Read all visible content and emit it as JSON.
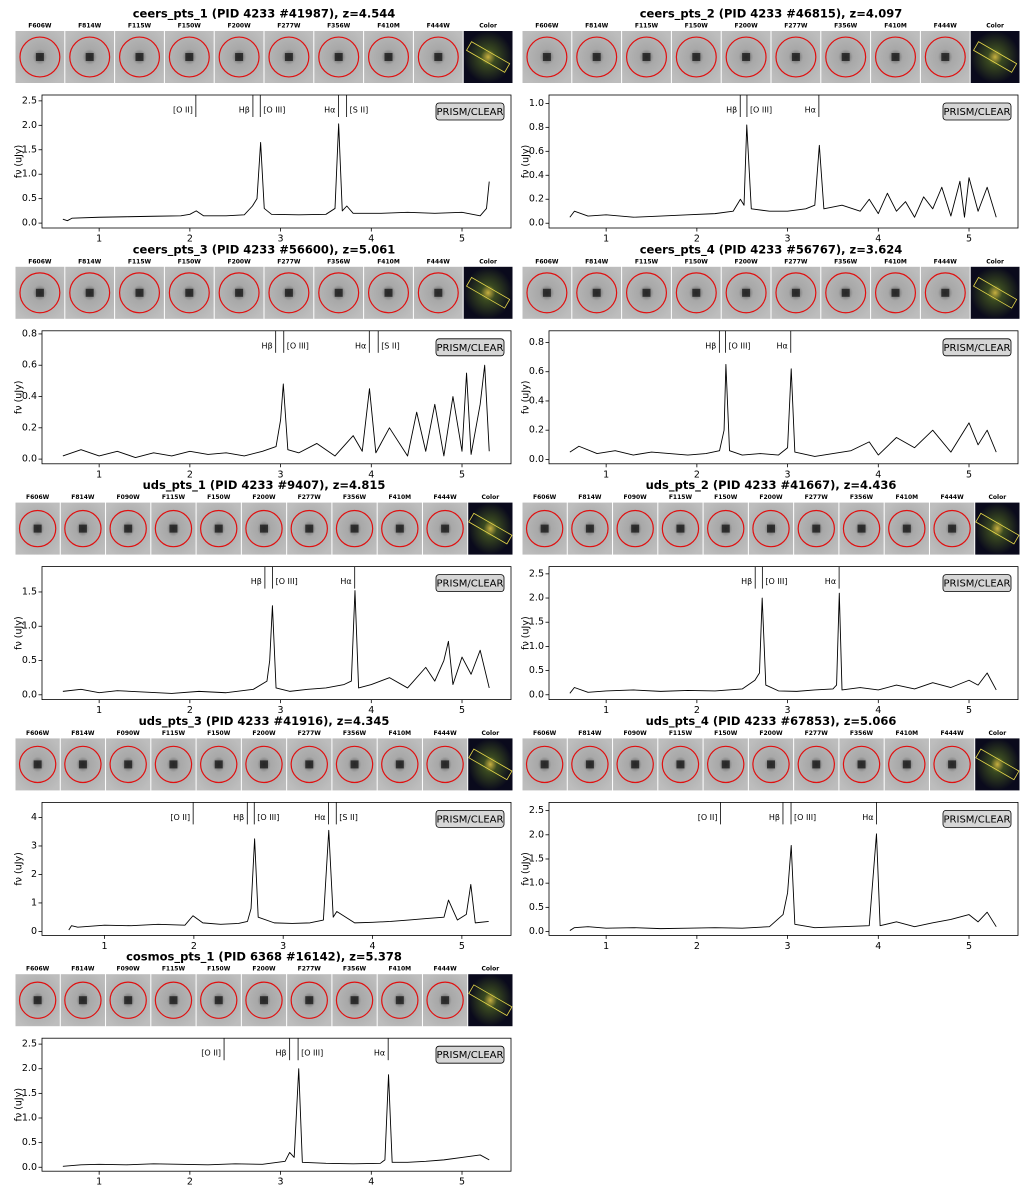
{
  "chart_data": [
    {
      "type": "line",
      "title": "ceers_pts_1 (PID 4233 #41987), z=4.544",
      "stamps": [
        "F606W",
        "F814W",
        "F115W",
        "F150W",
        "F200W",
        "F277W",
        "F356W",
        "F410M",
        "F444W",
        "Color"
      ],
      "label": "PRISM/CLEAR",
      "ylabel": "fν (uJy)",
      "color": "#000000",
      "annotations": [
        {
          "text": "[O II]",
          "x": 2.066
        },
        {
          "text": "Hβ",
          "x": 2.695
        },
        {
          "text": "[O III]",
          "x": 2.776
        },
        {
          "text": "Hα",
          "x": 3.638
        },
        {
          "text": "[S II]",
          "x": 3.728
        }
      ],
      "x": [
        0.6,
        0.65,
        0.7,
        1.0,
        1.3,
        1.6,
        1.9,
        2.0,
        2.07,
        2.15,
        2.4,
        2.6,
        2.69,
        2.74,
        2.78,
        2.82,
        2.9,
        3.2,
        3.5,
        3.6,
        3.64,
        3.68,
        3.73,
        3.8,
        4.1,
        4.4,
        4.7,
        5.0,
        5.2,
        5.27,
        5.3
      ],
      "values": [
        0.08,
        0.05,
        0.1,
        0.12,
        0.13,
        0.14,
        0.15,
        0.18,
        0.25,
        0.15,
        0.15,
        0.17,
        0.35,
        0.5,
        1.65,
        0.3,
        0.18,
        0.17,
        0.18,
        0.3,
        2.03,
        0.25,
        0.35,
        0.2,
        0.2,
        0.22,
        0.2,
        0.22,
        0.15,
        0.3,
        0.85
      ],
      "xlim": [
        0.37,
        5.54
      ],
      "xticks": [
        1,
        2,
        3,
        4,
        5
      ],
      "ylim": [
        -0.1,
        2.62
      ],
      "yticks": [
        {
          "value": 0,
          "label": "0.0"
        },
        0.5,
        {
          "value": 1,
          "label": "1.0"
        },
        1.5,
        {
          "value": 2,
          "label": "2.0"
        },
        2.5
      ]
    },
    {
      "type": "line",
      "title": "ceers_pts_2 (PID 4233 #46815), z=4.097",
      "stamps": [
        "F606W",
        "F814W",
        "F115W",
        "F150W",
        "F200W",
        "F277W",
        "F356W",
        "F410M",
        "F444W",
        "Color"
      ],
      "label": "PRISM/CLEAR",
      "ylabel": "fν (uJy)",
      "color": "#000000",
      "annotations": [
        {
          "text": "Hβ",
          "x": 2.478
        },
        {
          "text": "[O III]",
          "x": 2.552
        },
        {
          "text": "Hα",
          "x": 3.345
        }
      ],
      "x": [
        0.6,
        0.65,
        0.8,
        1.0,
        1.3,
        1.6,
        1.9,
        2.2,
        2.4,
        2.48,
        2.52,
        2.55,
        2.6,
        2.8,
        3.0,
        3.2,
        3.3,
        3.35,
        3.4,
        3.6,
        3.8,
        3.9,
        4.0,
        4.1,
        4.2,
        4.3,
        4.4,
        4.5,
        4.6,
        4.7,
        4.8,
        4.9,
        4.95,
        5.0,
        5.1,
        5.2,
        5.3
      ],
      "values": [
        0.05,
        0.1,
        0.06,
        0.07,
        0.05,
        0.06,
        0.07,
        0.08,
        0.1,
        0.2,
        0.15,
        0.82,
        0.12,
        0.1,
        0.1,
        0.12,
        0.15,
        0.65,
        0.12,
        0.15,
        0.1,
        0.2,
        0.08,
        0.25,
        0.1,
        0.18,
        0.05,
        0.22,
        0.12,
        0.3,
        0.06,
        0.35,
        0.05,
        0.38,
        0.1,
        0.3,
        0.05
      ],
      "xlim": [
        0.37,
        5.54
      ],
      "xticks": [
        1,
        2,
        3,
        4,
        5
      ],
      "ylim": [
        -0.04,
        1.07
      ],
      "yticks": [
        {
          "value": 0,
          "label": "0.0"
        },
        0.2,
        0.4,
        0.6,
        0.8,
        {
          "value": 1,
          "label": "1.0"
        }
      ]
    },
    {
      "type": "line",
      "title": "ceers_pts_3 (PID 4233 #56600), z=5.061",
      "stamps": [
        "F606W",
        "F814W",
        "F115W",
        "F150W",
        "F200W",
        "F277W",
        "F356W",
        "F410M",
        "F444W",
        "Color"
      ],
      "label": "PRISM/CLEAR",
      "ylabel": "fν (uJy)",
      "color": "#000000",
      "annotations": [
        {
          "text": "Hβ",
          "x": 2.946
        },
        {
          "text": "[O III]",
          "x": 3.035
        },
        {
          "text": "Hα",
          "x": 3.978
        },
        {
          "text": "[S II]",
          "x": 4.076
        }
      ],
      "x": [
        0.6,
        0.8,
        1.0,
        1.2,
        1.4,
        1.6,
        1.8,
        2.0,
        2.2,
        2.4,
        2.6,
        2.8,
        2.95,
        3.0,
        3.03,
        3.08,
        3.2,
        3.4,
        3.6,
        3.8,
        3.9,
        3.98,
        4.05,
        4.2,
        4.4,
        4.5,
        4.6,
        4.7,
        4.8,
        4.9,
        5.0,
        5.05,
        5.1,
        5.2,
        5.25,
        5.3
      ],
      "values": [
        0.02,
        0.06,
        0.02,
        0.05,
        0.01,
        0.04,
        0.02,
        0.05,
        0.03,
        0.04,
        0.02,
        0.05,
        0.08,
        0.25,
        0.48,
        0.06,
        0.04,
        0.1,
        0.02,
        0.15,
        0.05,
        0.45,
        0.04,
        0.2,
        0.02,
        0.3,
        0.05,
        0.35,
        0.02,
        0.4,
        0.05,
        0.55,
        0.03,
        0.35,
        0.6,
        0.05
      ],
      "xlim": [
        0.37,
        5.54
      ],
      "xticks": [
        1,
        2,
        3,
        4,
        5
      ],
      "ylim": [
        -0.03,
        0.82
      ],
      "yticks": [
        {
          "value": 0,
          "label": "0.0"
        },
        0.2,
        0.4,
        0.6,
        0.8
      ]
    },
    {
      "type": "line",
      "title": "ceers_pts_4 (PID 4233 #56767), z=3.624",
      "stamps": [
        "F606W",
        "F814W",
        "F115W",
        "F150W",
        "F200W",
        "F277W",
        "F356W",
        "F410M",
        "F444W",
        "Color"
      ],
      "label": "PRISM/CLEAR",
      "ylabel": "fν (uJy)",
      "color": "#000000",
      "annotations": [
        {
          "text": "Hβ",
          "x": 2.248
        },
        {
          "text": "[O III]",
          "x": 2.315
        },
        {
          "text": "Hα",
          "x": 3.035
        }
      ],
      "x": [
        0.6,
        0.7,
        0.9,
        1.1,
        1.3,
        1.5,
        1.7,
        1.9,
        2.1,
        2.25,
        2.3,
        2.32,
        2.36,
        2.5,
        2.7,
        2.9,
        3.0,
        3.04,
        3.08,
        3.3,
        3.5,
        3.7,
        3.9,
        4.0,
        4.2,
        4.4,
        4.6,
        4.8,
        5.0,
        5.1,
        5.2,
        5.3
      ],
      "values": [
        0.05,
        0.09,
        0.04,
        0.06,
        0.03,
        0.05,
        0.04,
        0.03,
        0.04,
        0.06,
        0.2,
        0.65,
        0.06,
        0.03,
        0.04,
        0.03,
        0.08,
        0.62,
        0.05,
        0.02,
        0.04,
        0.06,
        0.12,
        0.03,
        0.15,
        0.08,
        0.2,
        0.05,
        0.25,
        0.1,
        0.2,
        0.05
      ],
      "xlim": [
        0.37,
        5.54
      ],
      "xticks": [
        1,
        2,
        3,
        4,
        5
      ],
      "ylim": [
        -0.03,
        0.88
      ],
      "yticks": [
        {
          "value": 0,
          "label": "0.0"
        },
        0.2,
        0.4,
        0.6,
        0.8
      ]
    },
    {
      "type": "line",
      "title": "uds_pts_1 (PID 4233 #9407), z=4.815",
      "stamps": [
        "F606W",
        "F814W",
        "F090W",
        "F115W",
        "F150W",
        "F200W",
        "F277W",
        "F356W",
        "F410M",
        "F444W",
        "Color"
      ],
      "label": "PRISM/CLEAR",
      "ylabel": "fν (uJy)",
      "color": "#000000",
      "annotations": [
        {
          "text": "Hβ",
          "x": 2.827
        },
        {
          "text": "[O III]",
          "x": 2.912
        },
        {
          "text": "Hα",
          "x": 3.817
        }
      ],
      "x": [
        0.6,
        0.8,
        1.0,
        1.2,
        1.5,
        1.8,
        2.1,
        2.4,
        2.7,
        2.85,
        2.88,
        2.91,
        2.95,
        3.1,
        3.3,
        3.5,
        3.7,
        3.78,
        3.82,
        3.86,
        4.0,
        4.2,
        4.4,
        4.6,
        4.7,
        4.8,
        4.85,
        4.9,
        5.0,
        5.1,
        5.2,
        5.3
      ],
      "values": [
        0.05,
        0.08,
        0.03,
        0.06,
        0.04,
        0.02,
        0.05,
        0.03,
        0.08,
        0.2,
        0.5,
        1.3,
        0.1,
        0.05,
        0.08,
        0.1,
        0.15,
        0.2,
        1.52,
        0.1,
        0.15,
        0.25,
        0.1,
        0.4,
        0.2,
        0.5,
        0.78,
        0.15,
        0.55,
        0.3,
        0.65,
        0.1
      ],
      "xlim": [
        0.37,
        5.54
      ],
      "xticks": [
        1,
        2,
        3,
        4,
        5
      ],
      "ylim": [
        -0.07,
        1.87
      ],
      "yticks": [
        {
          "value": 0,
          "label": "0.0"
        },
        0.5,
        {
          "value": 1,
          "label": "1.0"
        },
        1.5
      ]
    },
    {
      "type": "line",
      "title": "uds_pts_2 (PID 4233 #41667), z=4.436",
      "stamps": [
        "F606W",
        "F814W",
        "F090W",
        "F115W",
        "F150W",
        "F200W",
        "F277W",
        "F356W",
        "F410M",
        "F444W",
        "Color"
      ],
      "label": "PRISM/CLEAR",
      "ylabel": "fν (uJy)",
      "color": "#000000",
      "annotations": [
        {
          "text": "Hβ",
          "x": 2.643
        },
        {
          "text": "[O III]",
          "x": 2.722
        },
        {
          "text": "Hα",
          "x": 3.568
        }
      ],
      "x": [
        0.6,
        0.65,
        0.8,
        1.0,
        1.3,
        1.6,
        1.9,
        2.2,
        2.5,
        2.64,
        2.69,
        2.72,
        2.76,
        2.9,
        3.1,
        3.3,
        3.5,
        3.54,
        3.57,
        3.6,
        3.8,
        4.0,
        4.2,
        4.4,
        4.6,
        4.8,
        5.0,
        5.1,
        5.2,
        5.3
      ],
      "values": [
        0.03,
        0.15,
        0.05,
        0.08,
        0.1,
        0.07,
        0.09,
        0.08,
        0.12,
        0.3,
        0.45,
        2.0,
        0.2,
        0.08,
        0.07,
        0.1,
        0.12,
        0.2,
        2.1,
        0.1,
        0.15,
        0.1,
        0.2,
        0.12,
        0.25,
        0.15,
        0.3,
        0.2,
        0.45,
        0.1
      ],
      "xlim": [
        0.37,
        5.54
      ],
      "xticks": [
        1,
        2,
        3,
        4,
        5
      ],
      "ylim": [
        -0.1,
        2.65
      ],
      "yticks": [
        {
          "value": 0,
          "label": "0.0"
        },
        0.5,
        {
          "value": 1,
          "label": "1.0"
        },
        1.5,
        {
          "value": 2,
          "label": "2.0"
        },
        2.5
      ]
    },
    {
      "type": "line",
      "title": "uds_pts_3 (PID 4233 #41916), z=4.345",
      "stamps": [
        "F606W",
        "F814W",
        "F090W",
        "F115W",
        "F150W",
        "F200W",
        "F277W",
        "F356W",
        "F410M",
        "F444W",
        "Color"
      ],
      "label": "PRISM/CLEAR",
      "ylabel": "fν (uJy)",
      "color": "#000000",
      "annotations": [
        {
          "text": "[O II]",
          "x": 1.992
        },
        {
          "text": "Hβ",
          "x": 2.598
        },
        {
          "text": "[O III]",
          "x": 2.676
        },
        {
          "text": "Hα",
          "x": 3.508
        },
        {
          "text": "[S II]",
          "x": 3.594
        }
      ],
      "x": [
        0.6,
        0.63,
        0.7,
        1.0,
        1.3,
        1.6,
        1.9,
        1.99,
        2.1,
        2.3,
        2.5,
        2.6,
        2.64,
        2.68,
        2.72,
        2.9,
        3.1,
        3.3,
        3.45,
        3.51,
        3.56,
        3.6,
        3.8,
        4.0,
        4.2,
        4.4,
        4.6,
        4.8,
        4.85,
        4.95,
        5.05,
        5.1,
        5.15,
        5.3
      ],
      "values": [
        0.05,
        0.2,
        0.15,
        0.22,
        0.2,
        0.25,
        0.22,
        0.55,
        0.3,
        0.25,
        0.28,
        0.35,
        0.8,
        3.25,
        0.5,
        0.3,
        0.28,
        0.3,
        0.4,
        3.55,
        0.5,
        0.7,
        0.3,
        0.32,
        0.35,
        0.4,
        0.45,
        0.5,
        1.1,
        0.4,
        0.6,
        1.65,
        0.3,
        0.35
      ],
      "xlim": [
        0.3,
        5.55
      ],
      "xticks": [
        1,
        2,
        3,
        4,
        5
      ],
      "ylim": [
        -0.14,
        4.53
      ],
      "yticks": [
        0,
        1,
        2,
        3,
        4
      ]
    },
    {
      "type": "line",
      "title": "uds_pts_4 (PID 4233 #67853), z=5.066",
      "stamps": [
        "F606W",
        "F814W",
        "F090W",
        "F115W",
        "F150W",
        "F200W",
        "F277W",
        "F356W",
        "F410M",
        "F444W",
        "Color"
      ],
      "label": "PRISM/CLEAR",
      "ylabel": "fν (uJy)",
      "color": "#000000",
      "annotations": [
        {
          "text": "[O II]",
          "x": 2.261
        },
        {
          "text": "Hβ",
          "x": 2.949
        },
        {
          "text": "[O III]",
          "x": 3.038
        },
        {
          "text": "Hα",
          "x": 3.981
        }
      ],
      "x": [
        0.6,
        0.65,
        0.8,
        1.0,
        1.3,
        1.6,
        1.9,
        2.2,
        2.5,
        2.8,
        2.95,
        3.0,
        3.04,
        3.08,
        3.3,
        3.6,
        3.9,
        3.98,
        4.02,
        4.2,
        4.4,
        4.6,
        4.8,
        5.0,
        5.1,
        5.2,
        5.3
      ],
      "values": [
        0.02,
        0.08,
        0.1,
        0.07,
        0.08,
        0.06,
        0.07,
        0.08,
        0.07,
        0.1,
        0.35,
        0.8,
        1.78,
        0.15,
        0.08,
        0.1,
        0.12,
        2.02,
        0.12,
        0.2,
        0.1,
        0.18,
        0.25,
        0.35,
        0.2,
        0.4,
        0.1
      ],
      "xlim": [
        0.37,
        5.54
      ],
      "xticks": [
        1,
        2,
        3,
        4,
        5
      ],
      "ylim": [
        -0.08,
        2.67
      ],
      "yticks": [
        {
          "value": 0,
          "label": "0.0"
        },
        0.5,
        {
          "value": 1,
          "label": "1.0"
        },
        1.5,
        {
          "value": 2,
          "label": "2.0"
        },
        2.5
      ]
    },
    {
      "type": "line",
      "title": "cosmos_pts_1 (PID 6368 #16142), z=5.378",
      "stamps": [
        "F606W",
        "F814W",
        "F090W",
        "F115W",
        "F150W",
        "F200W",
        "F277W",
        "F356W",
        "F410M",
        "F444W",
        "Color"
      ],
      "label": "PRISM/CLEAR",
      "ylabel": "fν (uJy)",
      "color": "#000000",
      "annotations": [
        {
          "text": "[O II]",
          "x": 2.377
        },
        {
          "text": "Hβ",
          "x": 3.1
        },
        {
          "text": "[O III]",
          "x": 3.193
        },
        {
          "text": "Hα",
          "x": 4.186
        }
      ],
      "x": [
        0.6,
        0.8,
        1.0,
        1.3,
        1.6,
        1.9,
        2.2,
        2.5,
        2.8,
        3.05,
        3.1,
        3.15,
        3.2,
        3.24,
        3.5,
        3.8,
        4.1,
        4.15,
        4.19,
        4.23,
        4.4,
        4.6,
        4.8,
        5.0,
        5.2,
        5.3
      ],
      "values": [
        0.02,
        0.05,
        0.06,
        0.05,
        0.07,
        0.06,
        0.05,
        0.07,
        0.06,
        0.12,
        0.3,
        0.2,
        2.0,
        0.1,
        0.08,
        0.07,
        0.08,
        0.15,
        1.88,
        0.1,
        0.1,
        0.12,
        0.15,
        0.2,
        0.25,
        0.15
      ],
      "xlim": [
        0.37,
        5.54
      ],
      "xticks": [
        1,
        2,
        3,
        4,
        5
      ],
      "ylim": [
        -0.08,
        2.62
      ],
      "yticks": [
        {
          "value": 0,
          "label": "0.0"
        },
        0.5,
        {
          "value": 1,
          "label": "1.0"
        },
        1.5,
        {
          "value": 2,
          "label": "2.0"
        },
        2.5
      ]
    }
  ]
}
